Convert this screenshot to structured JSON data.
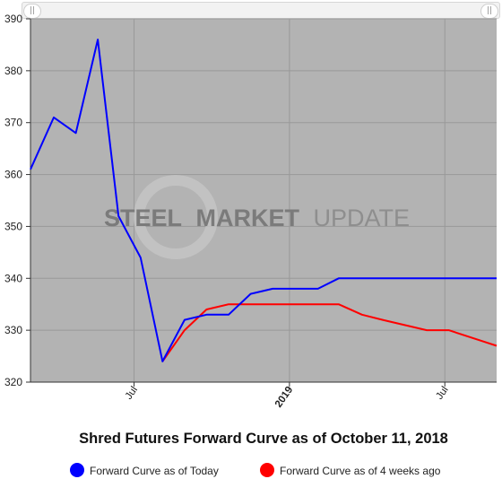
{
  "chart_data": {
    "type": "line",
    "title": "Shred Futures Forward Curve as of October 11, 2018",
    "xlabel": "",
    "ylabel": "",
    "watermark": {
      "part1": "STEEL",
      "part2": "MARKET",
      "part3": "UPDATE"
    },
    "x_tick_labels": [
      "Jul",
      "2019",
      "Jul"
    ],
    "x_tick_months": [
      6,
      12,
      18
    ],
    "x_range_months": [
      2,
      20
    ],
    "x_grid_months": [
      2,
      6,
      12,
      18
    ],
    "ylim": [
      320,
      390
    ],
    "y_ticks": [
      320,
      330,
      340,
      350,
      360,
      370,
      380,
      390
    ],
    "grid": true,
    "legend_position": "bottom",
    "colors": {
      "plot_bg": "#b3b3b3",
      "grid": "#999999",
      "today": "#0000ff",
      "ago": "#ff0000",
      "axis": "#333333"
    },
    "series": [
      {
        "name": "Forward Curve as of Today",
        "color": "#0000ff",
        "x": [
          2,
          2.9,
          3.75,
          4.6,
          5.4,
          6.25,
          7.1,
          7.95,
          8.8,
          9.65,
          10.5,
          11.35,
          12.2,
          13.1,
          13.9,
          14.8,
          15.6,
          20
        ],
        "y": [
          361,
          371,
          368,
          386,
          352,
          344,
          324,
          332,
          333,
          333,
          337,
          338,
          338,
          338,
          340,
          340,
          340,
          340
        ]
      },
      {
        "name": "Forward Curve as of 4 weeks ago",
        "color": "#ff0000",
        "x": [
          7.1,
          7.95,
          8.8,
          9.65,
          10.5,
          11.35,
          12.2,
          13.1,
          13.9,
          14.8,
          15.6,
          17.3,
          18.15,
          20
        ],
        "y": [
          324,
          330,
          334,
          335,
          335,
          335,
          335,
          335,
          335,
          333,
          332,
          330,
          330,
          327
        ]
      }
    ]
  }
}
